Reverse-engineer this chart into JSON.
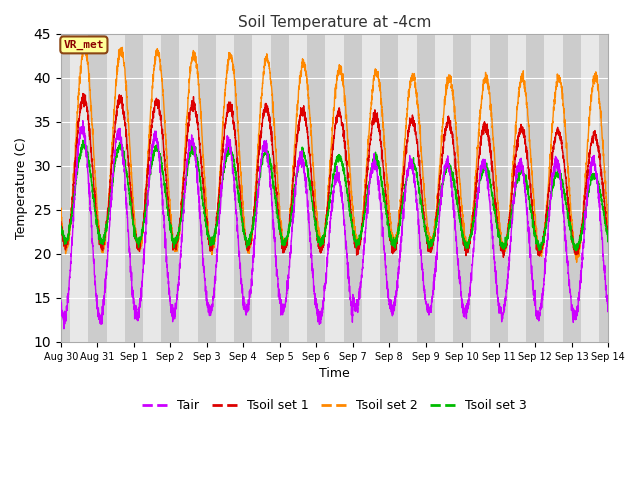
{
  "title": "Soil Temperature at -4cm",
  "xlabel": "Time",
  "ylabel": "Temperature (C)",
  "ylim": [
    10,
    45
  ],
  "background_color": "#ffffff",
  "plot_bg_light": "#e8e8e8",
  "plot_bg_dark": "#d0d0d0",
  "grid_color": "#ffffff",
  "legend_labels": [
    "Tair",
    "Tsoil set 1",
    "Tsoil set 2",
    "Tsoil set 3"
  ],
  "legend_colors": [
    "#cc00ff",
    "#dd0000",
    "#ff8800",
    "#00bb00"
  ],
  "xtick_labels": [
    "Aug 30",
    "Aug 31",
    "Sep 1",
    "Sep 2",
    "Sep 3",
    "Sep 4",
    "Sep 5",
    "Sep 6",
    "Sep 7",
    "Sep 8",
    "Sep 9",
    "Sep 10",
    "Sep 11",
    "Sep 12",
    "Sep 13",
    "Sep 14"
  ],
  "xtick_positions": [
    0,
    24,
    48,
    72,
    96,
    120,
    144,
    168,
    192,
    216,
    240,
    264,
    288,
    312,
    336,
    360
  ],
  "annotation_text": "VR_met",
  "annotation_color": "#8b0000",
  "annotation_bg": "#ffff99",
  "annotation_border": "#8b4513"
}
